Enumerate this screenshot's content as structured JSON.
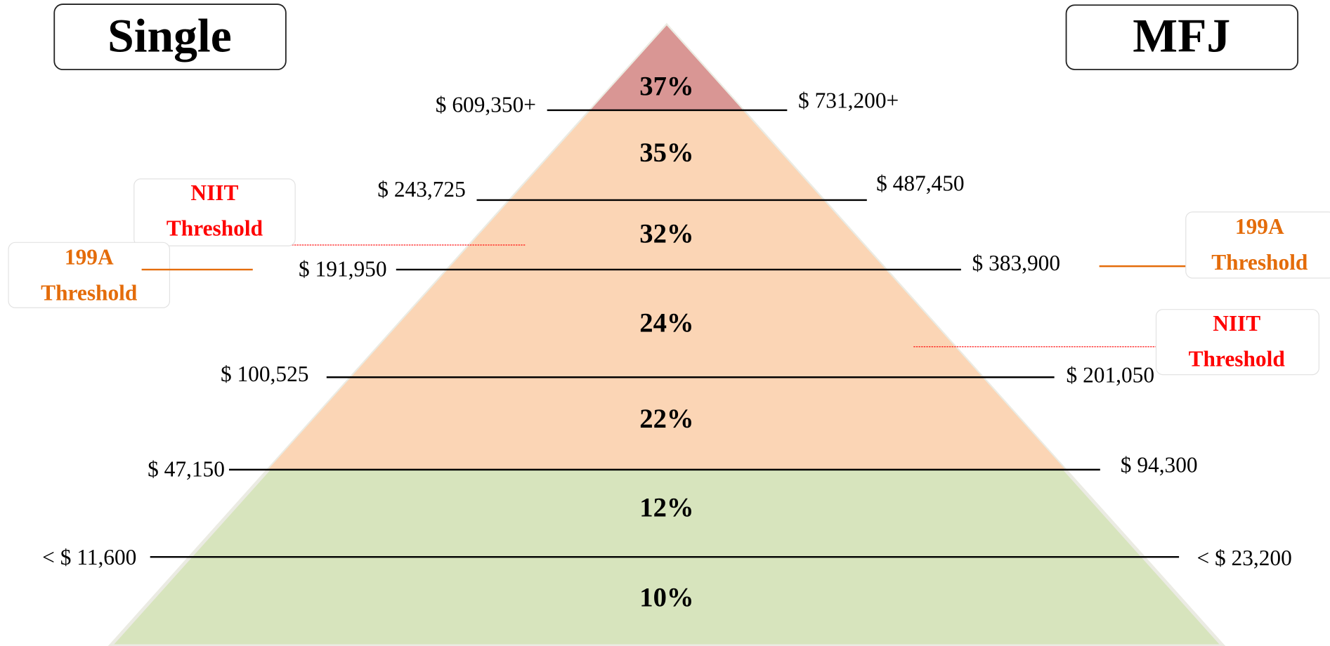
{
  "headers": {
    "single": "Single",
    "mfj": "MFJ"
  },
  "brackets": [
    "37%",
    "35%",
    "32%",
    "24%",
    "22%",
    "12%",
    "10%"
  ],
  "thresholds": [
    {
      "single": "$ 609,350+",
      "mfj": "$ 731,200+"
    },
    {
      "single": "$ 243,725",
      "mfj": "$ 487,450"
    },
    {
      "single": "$ 191,950",
      "mfj": "$ 383,900"
    },
    {
      "single": "$ 100,525",
      "mfj": "$ 201,050"
    },
    {
      "single": "$ 47,150",
      "mfj": "$ 94,300"
    },
    {
      "single": "< $ 11,600",
      "mfj": "< $ 23,200"
    }
  ],
  "callouts": {
    "single_niit": [
      "NIIT",
      "Threshold"
    ],
    "single_199a": [
      "199A",
      "Threshold"
    ],
    "mfj_199a": [
      "199A",
      "Threshold"
    ],
    "mfj_niit": [
      "NIIT",
      "Threshold"
    ]
  }
}
